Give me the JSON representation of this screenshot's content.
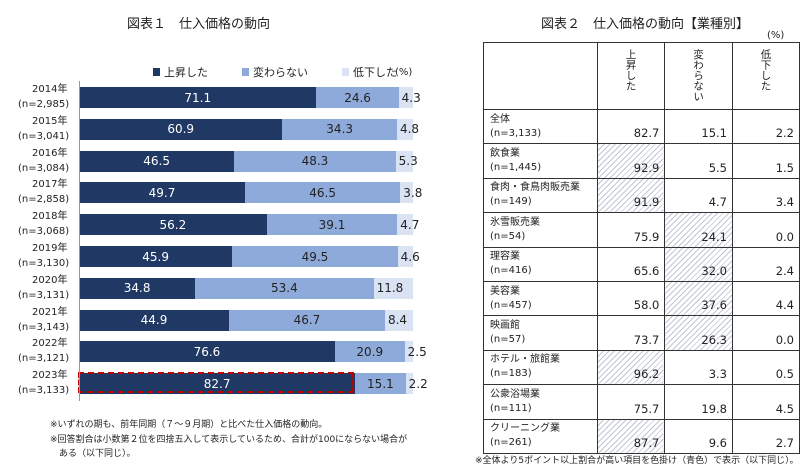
{
  "chart_data": [
    {
      "type": "bar",
      "title": "図表１　仕入価格の動向",
      "unit": "(%)",
      "categories": [
        "2014年",
        "2015年",
        "2016年",
        "2017年",
        "2018年",
        "2019年",
        "2020年",
        "2021年",
        "2022年",
        "2023年"
      ],
      "sample_sizes": [
        "(n=2,985)",
        "(n=3,041)",
        "(n=3,084)",
        "(n=2,858)",
        "(n=3,068)",
        "(n=3,130)",
        "(n=3,131)",
        "(n=3,143)",
        "(n=3,121)",
        "(n=3,133)"
      ],
      "series": [
        {
          "name": "上昇した",
          "color": "#1f3864",
          "values": [
            71.1,
            60.9,
            46.5,
            49.7,
            56.2,
            45.9,
            34.8,
            44.9,
            76.6,
            82.7
          ]
        },
        {
          "name": "変わらない",
          "color": "#8eaadb",
          "values": [
            24.6,
            34.3,
            48.3,
            46.5,
            39.1,
            49.5,
            53.4,
            46.7,
            20.9,
            15.1
          ]
        },
        {
          "name": "低下した",
          "color": "#dae3f3",
          "values": [
            4.3,
            4.8,
            5.3,
            3.8,
            4.7,
            4.6,
            11.8,
            8.4,
            2.5,
            2.2
          ]
        }
      ],
      "stacked": true,
      "orientation": "horizontal",
      "highlighted_category": "2023年",
      "xlim": [
        0,
        100
      ],
      "notes": [
        "※いずれの期も、前年同期（７～９月期）と比べた仕入価格の動向。",
        "※回答割合は小数第２位を四捨五入して表示しているため、合計が100にならない場合が",
        "　ある（以下同じ）。"
      ]
    },
    {
      "type": "table",
      "title": "図表２　仕入価格の動向【業種別】",
      "unit": "(%)",
      "columns": [
        "上昇した",
        "変わらない",
        "低下した"
      ],
      "rows": [
        {
          "label": "全体",
          "n": "(n=3,133)",
          "values": [
            "82.7",
            "15.1",
            "2.2"
          ],
          "highlight": [
            false,
            false,
            false
          ]
        },
        {
          "label": "飲食業",
          "n": "(n=1,445)",
          "values": [
            "92.9",
            "5.5",
            "1.5"
          ],
          "highlight": [
            true,
            false,
            false
          ]
        },
        {
          "label": "食肉・食鳥肉販売業",
          "n": "(n=149)",
          "values": [
            "91.9",
            "4.7",
            "3.4"
          ],
          "highlight": [
            true,
            false,
            false
          ]
        },
        {
          "label": "氷雪販売業",
          "n": "(n=54)",
          "values": [
            "75.9",
            "24.1",
            "0.0"
          ],
          "highlight": [
            false,
            true,
            false
          ]
        },
        {
          "label": "理容業",
          "n": "(n=416)",
          "values": [
            "65.6",
            "32.0",
            "2.4"
          ],
          "highlight": [
            false,
            true,
            false
          ]
        },
        {
          "label": "美容業",
          "n": "(n=457)",
          "values": [
            "58.0",
            "37.6",
            "4.4"
          ],
          "highlight": [
            false,
            true,
            false
          ]
        },
        {
          "label": "映画館",
          "n": "(n=57)",
          "values": [
            "73.7",
            "26.3",
            "0.0"
          ],
          "highlight": [
            false,
            true,
            false
          ]
        },
        {
          "label": "ホテル・旅館業",
          "n": "(n=183)",
          "values": [
            "96.2",
            "3.3",
            "0.5"
          ],
          "highlight": [
            true,
            false,
            false
          ]
        },
        {
          "label": "公衆浴場業",
          "n": "(n=111)",
          "values": [
            "75.7",
            "19.8",
            "4.5"
          ],
          "highlight": [
            false,
            false,
            false
          ]
        },
        {
          "label": "クリーニング業",
          "n": "(n=261)",
          "values": [
            "87.7",
            "9.6",
            "2.7"
          ],
          "highlight": [
            true,
            false,
            false
          ]
        }
      ],
      "notes": [
        "※全体より5ポイント以上割合が高い項目を色掛け（青色）で表示（以下同じ）。"
      ]
    }
  ]
}
